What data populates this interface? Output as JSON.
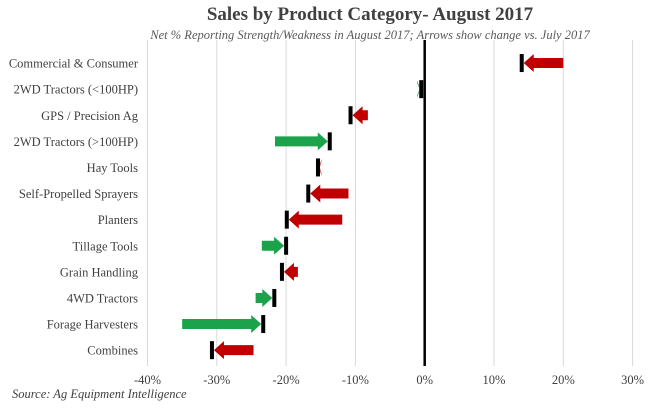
{
  "chart_data": {
    "type": "bar",
    "title": "Sales by Product Category- August 2017",
    "subtitle": "Net % Reporting Strength/Weakness in August 2017; Arrows show change vs. July 2017",
    "source": "Source: Ag Equipment Intelligence",
    "xlabel": "",
    "ylabel": "",
    "xlim": [
      -40,
      30
    ],
    "x_ticks": [
      -40,
      -30,
      -20,
      -10,
      0,
      10,
      20,
      30
    ],
    "x_tick_labels": [
      "-40%",
      "-30%",
      "-20%",
      "-10%",
      "0%",
      "10%",
      "20%",
      "30%"
    ],
    "grid": true,
    "categories": [
      "Commercial & Consumer",
      "2WD Tractors (<100HP)",
      "GPS / Precision Ag",
      "2WD Tractors (>100HP)",
      "Hay Tools",
      "Self-Propelled Sprayers",
      "Planters",
      "Tillage Tools",
      "Grain Handling",
      "4WD Tractors",
      "Forage Harvesters",
      "Combines"
    ],
    "series": [
      {
        "name": "July 2017",
        "values": [
          20.0,
          -0.8,
          -8.2,
          -21.6,
          -15.2,
          -11.0,
          -11.9,
          -23.5,
          -18.3,
          -24.4,
          -35.0,
          -24.7
        ]
      },
      {
        "name": "August 2017",
        "values": [
          14.0,
          -0.5,
          -10.7,
          -13.7,
          -15.4,
          -16.8,
          -19.9,
          -20.0,
          -20.6,
          -21.7,
          -23.3,
          -30.7
        ]
      }
    ],
    "colors": {
      "improve": "#1ba24a",
      "decline": "#c00000",
      "marker": "#000000",
      "grid": "#d9d9d9"
    }
  }
}
